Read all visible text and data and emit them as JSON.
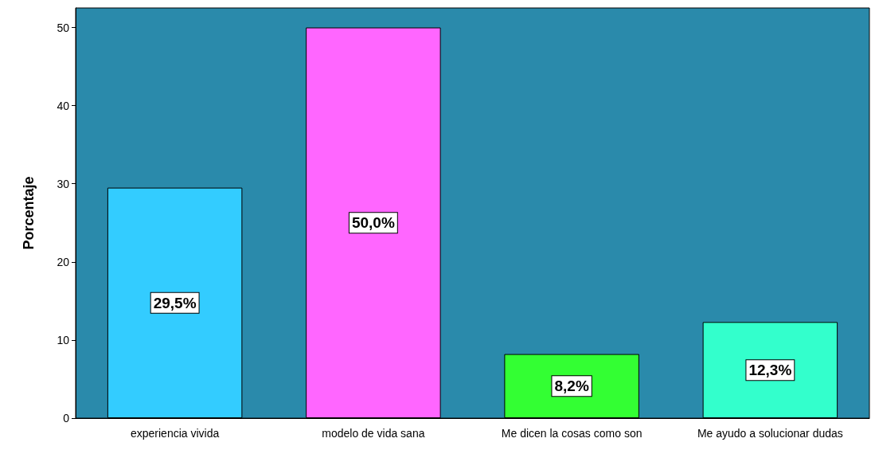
{
  "chart_data": {
    "type": "bar",
    "ylabel": "Porcentaje",
    "categories": [
      "experiencia vivida",
      "modelo de vida sana",
      "Me dicen la cosas como son",
      "Me ayudo a solucionar dudas"
    ],
    "values": [
      29.5,
      50.0,
      8.2,
      12.3
    ],
    "value_labels": [
      "29,5%",
      "50,0%",
      "8,2%",
      "12,3%"
    ],
    "colors": [
      "#33ccff",
      "#ff66ff",
      "#33ff33",
      "#33ffcc"
    ],
    "ylim": [
      0,
      52.5
    ],
    "yticks": [
      0,
      10,
      20,
      30,
      40,
      50
    ],
    "grid": false
  }
}
